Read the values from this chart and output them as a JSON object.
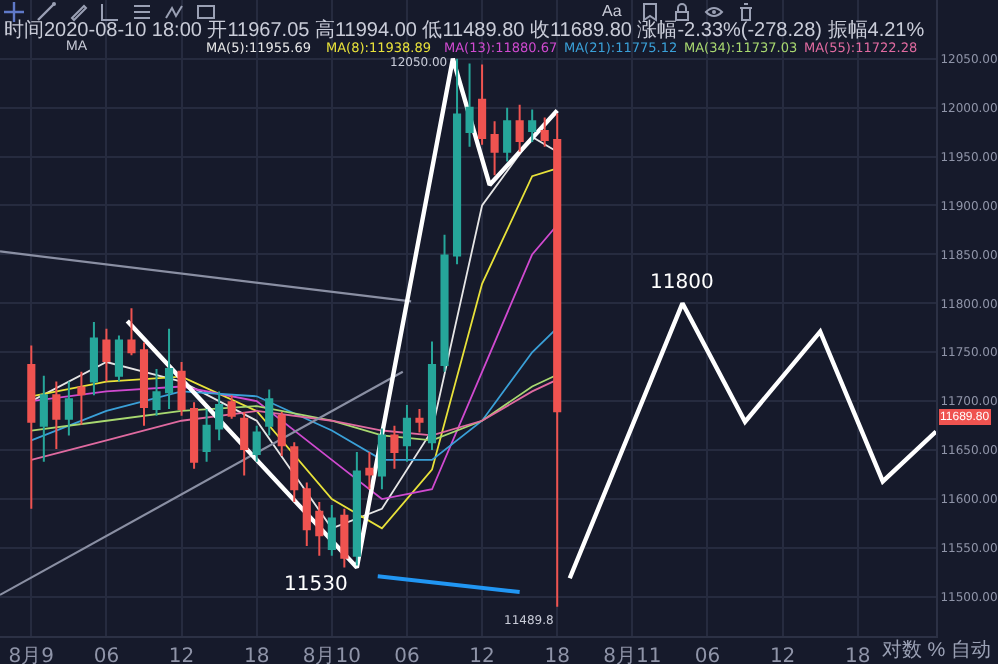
{
  "chart_data": {
    "type": "candlestick",
    "x": [
      "2020-08-09T00:00",
      "2020-08-09T01:00",
      "2020-08-09T02:00",
      "2020-08-09T03:00",
      "2020-08-09T04:00",
      "2020-08-09T05:00",
      "2020-08-09T06:00",
      "2020-08-09T07:00",
      "2020-08-09T08:00",
      "2020-08-09T09:00",
      "2020-08-09T10:00",
      "2020-08-09T11:00",
      "2020-08-09T12:00",
      "2020-08-09T13:00",
      "2020-08-09T14:00",
      "2020-08-09T15:00",
      "2020-08-09T16:00",
      "2020-08-09T17:00",
      "2020-08-09T18:00",
      "2020-08-09T19:00",
      "2020-08-09T20:00",
      "2020-08-09T21:00",
      "2020-08-09T22:00",
      "2020-08-09T23:00",
      "2020-08-10T00:00",
      "2020-08-10T01:00",
      "2020-08-10T02:00",
      "2020-08-10T03:00",
      "2020-08-10T04:00",
      "2020-08-10T05:00",
      "2020-08-10T06:00",
      "2020-08-10T07:00",
      "2020-08-10T08:00",
      "2020-08-10T09:00",
      "2020-08-10T10:00",
      "2020-08-10T11:00",
      "2020-08-10T12:00",
      "2020-08-10T13:00",
      "2020-08-10T14:00",
      "2020-08-10T15:00",
      "2020-08-10T16:00",
      "2020-08-10T17:00",
      "2020-08-10T18:00"
    ],
    "ohlc": [
      [
        11737,
        11757,
        11590,
        11679
      ],
      [
        11675,
        11726,
        11638,
        11706
      ],
      [
        11706,
        11720,
        11651,
        11682
      ],
      [
        11682,
        11720,
        11665,
        11702
      ],
      [
        11714,
        11730,
        11676,
        11707
      ],
      [
        11720,
        11781,
        11706,
        11764
      ],
      [
        11762,
        11774,
        11720,
        11741
      ],
      [
        11726,
        11767,
        11720,
        11762
      ],
      [
        11762,
        11795,
        11747,
        11750
      ],
      [
        11752,
        11760,
        11675,
        11694
      ],
      [
        11692,
        11733,
        11685,
        11709
      ],
      [
        11709,
        11774,
        11692,
        11733
      ],
      [
        11730,
        11740,
        11685,
        11692
      ],
      [
        11692,
        11699,
        11631,
        11638
      ],
      [
        11649,
        11692,
        11638,
        11675
      ],
      [
        11672,
        11710,
        11660,
        11696
      ],
      [
        11699,
        11706,
        11682,
        11685
      ],
      [
        11682,
        11689,
        11624,
        11651
      ],
      [
        11646,
        11675,
        11638,
        11668
      ],
      [
        11675,
        11712,
        11665,
        11702
      ],
      [
        11685,
        11689,
        11644,
        11655
      ],
      [
        11653,
        11658,
        11597,
        11610
      ],
      [
        11610,
        11617,
        11552,
        11569
      ],
      [
        11587,
        11597,
        11542,
        11563
      ],
      [
        11549,
        11594,
        11542,
        11580
      ],
      [
        11583,
        11590,
        11530,
        11540
      ],
      [
        11542,
        11648,
        11532,
        11628
      ],
      [
        11631,
        11648,
        11610,
        11625
      ],
      [
        11624,
        11672,
        11610,
        11665
      ],
      [
        11665,
        11675,
        11631,
        11648
      ],
      [
        11655,
        11696,
        11638,
        11682
      ],
      [
        11682,
        11692,
        11668,
        11679
      ],
      [
        11658,
        11761,
        11650,
        11737
      ],
      [
        11737,
        11870,
        11730,
        11849
      ],
      [
        11849,
        12050,
        11840,
        11993
      ],
      [
        11975,
        12045,
        11960,
        12000
      ],
      [
        12008,
        12044,
        11962,
        11969
      ],
      [
        11972,
        11986,
        11931,
        11955
      ],
      [
        11955,
        12000,
        11945,
        11986
      ],
      [
        11986,
        12003,
        11955,
        11966
      ],
      [
        11976,
        11998,
        11965,
        11986
      ],
      [
        11976,
        11990,
        11960,
        11967
      ],
      [
        11967.05,
        11994,
        11489.8,
        11689.8
      ]
    ],
    "series": [
      {
        "type": "line",
        "name": "MA(5):11955.69",
        "color": "#e6e6e6",
        "x": [
          "2020-08-09T00:00",
          "2020-08-09T06:00",
          "2020-08-09T12:00",
          "2020-08-09T18:00",
          "2020-08-10T00:00",
          "2020-08-10T04:00",
          "2020-08-10T08:00",
          "2020-08-10T12:00",
          "2020-08-10T16:00",
          "2020-08-10T18:00"
        ],
        "values": [
          11700,
          11740,
          11720,
          11680,
          11570,
          11590,
          11670,
          11900,
          11970,
          11955
        ]
      },
      {
        "type": "line",
        "name": "MA(8):11938.89",
        "color": "#e8e23a",
        "x": [
          "2020-08-09T00:00",
          "2020-08-09T06:00",
          "2020-08-09T12:00",
          "2020-08-09T18:00",
          "2020-08-10T00:00",
          "2020-08-10T04:00",
          "2020-08-10T08:00",
          "2020-08-10T12:00",
          "2020-08-10T16:00",
          "2020-08-10T18:00"
        ],
        "values": [
          11705,
          11720,
          11725,
          11690,
          11600,
          11570,
          11630,
          11820,
          11930,
          11938
        ]
      },
      {
        "type": "line",
        "name": "MA(13):11880.67",
        "color": "#d04ad0",
        "x": [
          "2020-08-09T00:00",
          "2020-08-09T06:00",
          "2020-08-09T12:00",
          "2020-08-09T18:00",
          "2020-08-10T00:00",
          "2020-08-10T04:00",
          "2020-08-10T08:00",
          "2020-08-10T12:00",
          "2020-08-10T16:00",
          "2020-08-10T18:00"
        ],
        "values": [
          11700,
          11710,
          11715,
          11700,
          11640,
          11600,
          11610,
          11730,
          11850,
          11880
        ]
      },
      {
        "type": "line",
        "name": "MA(21):11775.12",
        "color": "#3aa0d8",
        "x": [
          "2020-08-09T00:00",
          "2020-08-09T06:00",
          "2020-08-09T12:00",
          "2020-08-09T18:00",
          "2020-08-10T00:00",
          "2020-08-10T04:00",
          "2020-08-10T08:00",
          "2020-08-10T12:00",
          "2020-08-10T16:00",
          "2020-08-10T18:00"
        ],
        "values": [
          11660,
          11690,
          11710,
          11705,
          11670,
          11640,
          11640,
          11680,
          11750,
          11775
        ]
      },
      {
        "type": "line",
        "name": "MA(34):11737.03",
        "color": "#a8d870",
        "x": [
          "2020-08-09T00:00",
          "2020-08-09T06:00",
          "2020-08-09T12:00",
          "2020-08-09T18:00",
          "2020-08-10T00:00",
          "2020-08-10T04:00",
          "2020-08-10T08:00",
          "2020-08-10T12:00",
          "2020-08-10T16:00",
          "2020-08-10T18:00"
        ],
        "values": [
          11670,
          11680,
          11690,
          11695,
          11680,
          11665,
          11660,
          11680,
          11715,
          11727
        ]
      },
      {
        "type": "line",
        "name": "MA(55):11722.28",
        "color": "#e06aa0",
        "x": [
          "2020-08-09T00:00",
          "2020-08-09T06:00",
          "2020-08-09T12:00",
          "2020-08-09T18:00",
          "2020-08-10T00:00",
          "2020-08-10T04:00",
          "2020-08-10T08:00",
          "2020-08-10T12:00",
          "2020-08-10T16:00",
          "2020-08-10T18:00"
        ],
        "values": [
          11640,
          11660,
          11680,
          11690,
          11680,
          11670,
          11665,
          11680,
          11710,
          11722
        ]
      },
      {
        "type": "line",
        "color": "#8a8fa3",
        "x": [
          "2020-08-08T21:30",
          "2020-08-10T06:20"
        ],
        "values": [
          11853,
          11802
        ]
      },
      {
        "type": "line",
        "color": "#8a8fa3",
        "x": [
          "2020-08-08T21:30",
          "2020-08-10T05:40"
        ],
        "values": [
          11502,
          11730
        ]
      },
      {
        "type": "line",
        "color": "#ffffff",
        "x": [
          "2020-08-09T07:40",
          "2020-08-10T02:00",
          "2020-08-10T09:40",
          "2020-08-10T12:36",
          "2020-08-10T18:00"
        ],
        "values": [
          11782,
          11530,
          12050,
          11921,
          11997
        ]
      },
      {
        "type": "line",
        "color": "#ffffff",
        "x": [
          "2020-08-10T19:00",
          "2020-08-11T04:00",
          "2020-08-11T09:00",
          "2020-08-11T15:00",
          "2020-08-11T20:00",
          "2020-08-12T00:15"
        ],
        "values": [
          11519,
          11800,
          11679,
          11771,
          11618,
          11669
        ]
      },
      {
        "type": "line",
        "color": "#2196f3",
        "x": [
          "2020-08-10T03:40",
          "2020-08-10T15:00"
        ],
        "values": [
          11521,
          11505
        ]
      }
    ],
    "xlim": [
      "2020-08-08T21:30",
      "2020-08-12T00:15"
    ],
    "xticks": [
      {
        "value": "2020-08-09T00:00",
        "label": "8月9"
      },
      {
        "value": "2020-08-09T06:00",
        "label": "06"
      },
      {
        "value": "2020-08-09T12:00",
        "label": "12"
      },
      {
        "value": "2020-08-09T18:00",
        "label": "18"
      },
      {
        "value": "2020-08-10T00:00",
        "label": "8月10"
      },
      {
        "value": "2020-08-10T06:00",
        "label": "06"
      },
      {
        "value": "2020-08-10T12:00",
        "label": "12"
      },
      {
        "value": "2020-08-10T18:00",
        "label": "18"
      },
      {
        "value": "2020-08-11T00:00",
        "label": "8月11"
      },
      {
        "value": "2020-08-11T06:00",
        "label": "06"
      },
      {
        "value": "2020-08-11T12:00",
        "label": "12"
      },
      {
        "value": "2020-08-11T18:00",
        "label": "18"
      }
    ],
    "ylim": [
      11460,
      12110
    ],
    "yticks": [
      {
        "value": 11500,
        "label": "11500.00"
      },
      {
        "value": 11550,
        "label": "11550.00"
      },
      {
        "value": 11600,
        "label": "11600.00"
      },
      {
        "value": 11650,
        "label": "11650.00"
      },
      {
        "value": 11700,
        "label": "11700.00"
      },
      {
        "value": 11750,
        "label": "11750.00"
      },
      {
        "value": 11800,
        "label": "11800.00"
      },
      {
        "value": 11850,
        "label": "11850.00"
      },
      {
        "value": 11900,
        "label": "11900.00"
      },
      {
        "value": 11950,
        "label": "11950.00"
      },
      {
        "value": 12000,
        "label": "12000.00"
      },
      {
        "value": 12050,
        "label": "12050.00"
      }
    ],
    "grid": true,
    "annotations": [
      "时间2020-08-10 18:00 开11967.05 高11994.00 低11489.80 收11689.80 涨幅-2.33%(-278.28) 振幅4.21%",
      "MA",
      "Aa",
      "对数 % 自动",
      {
        "text": "11530",
        "x": "2020-08-10T02:00",
        "y": 11530
      },
      {
        "text": "11800",
        "x": "2020-08-11T04:00",
        "y": 11800
      },
      {
        "text": "12050.00",
        "x": "2020-08-10T10:00",
        "y": 12050
      },
      {
        "text": "11489.8",
        "x": "2020-08-10T18:00",
        "y": 11489.8
      },
      "11689.80"
    ]
  }
}
